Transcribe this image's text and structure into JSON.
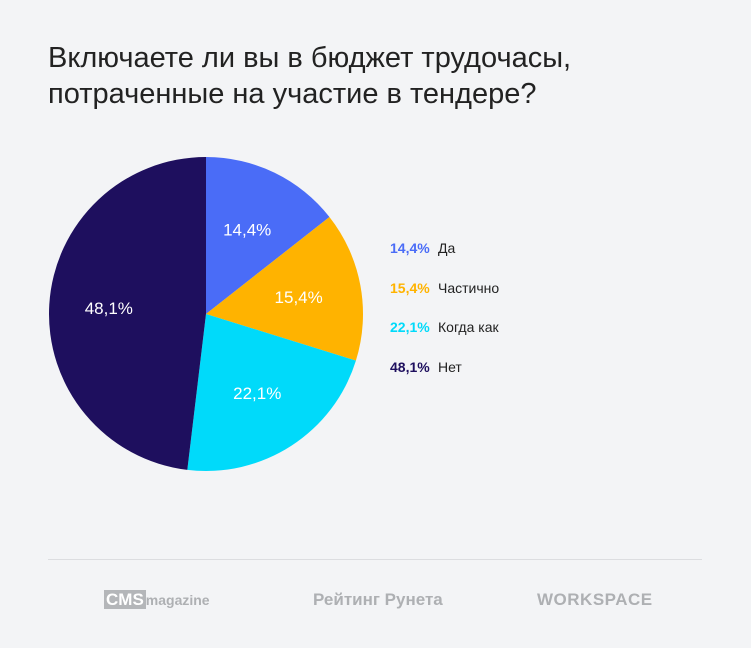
{
  "title_lines": [
    "Включаете ли вы в бюджет трудочасы,",
    "потраченные на участие в тендере?"
  ],
  "chart_data": {
    "type": "pie",
    "title": "Включаете ли вы в бюджет трудочасы, потраченные на участие в тендере?",
    "start": "12 o'clock, clockwise",
    "legend_placement": "right",
    "slices": [
      {
        "label": "Да",
        "value": 14.4,
        "display": "14,4%",
        "color": "#4a6cf7"
      },
      {
        "label": "Частично",
        "value": 15.4,
        "display": "15,4%",
        "color": "#ffb300"
      },
      {
        "label": "Когда как",
        "value": 22.1,
        "display": "22,1%",
        "color": "#00dafa"
      },
      {
        "label": "Нет",
        "value": 48.1,
        "display": "48,1%",
        "color": "#1e0f5e"
      }
    ]
  },
  "footer": {
    "logo1_box": "CMS",
    "logo1_text": "magazine",
    "logo2": "Рейтинг Рунета",
    "logo3": "WORKSPACE"
  }
}
